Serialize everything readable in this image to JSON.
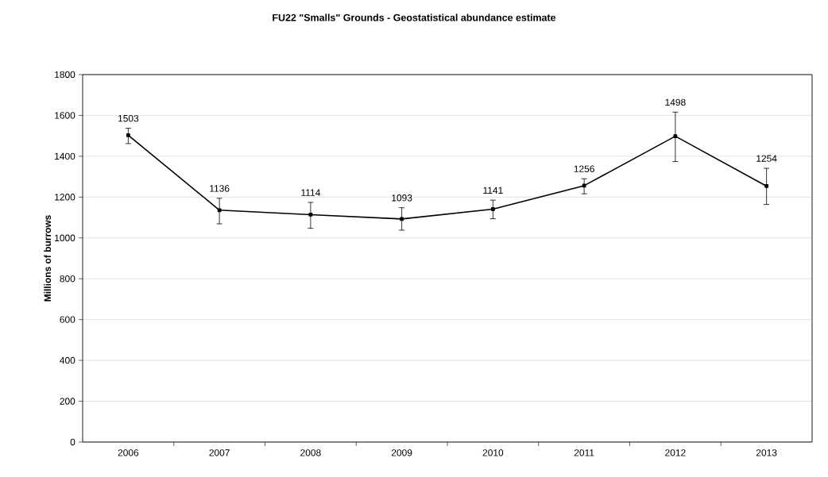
{
  "chart_data": {
    "type": "line",
    "title": "FU22 \"Smalls\" Grounds -  Geostatistical  abundance estimate",
    "ylabel": "Millions of burrows",
    "categories": [
      "2006",
      "2007",
      "2008",
      "2009",
      "2010",
      "2011",
      "2012",
      "2013"
    ],
    "values": [
      1503,
      1136,
      1114,
      1093,
      1141,
      1256,
      1498,
      1254
    ],
    "errors": [
      [
        1462,
        1537
      ],
      [
        1069,
        1194
      ],
      [
        1047,
        1174
      ],
      [
        1038,
        1148
      ],
      [
        1094,
        1185
      ],
      [
        1216,
        1290
      ],
      [
        1374,
        1616
      ],
      [
        1164,
        1341
      ]
    ],
    "color": "#000000",
    "marker": "square",
    "line_style": "solid",
    "ylim": [
      0,
      1800
    ],
    "yticks": [
      0,
      200,
      400,
      600,
      800,
      1000,
      1200,
      1400,
      1600,
      1800
    ],
    "grid": "y",
    "data_labels": true
  }
}
